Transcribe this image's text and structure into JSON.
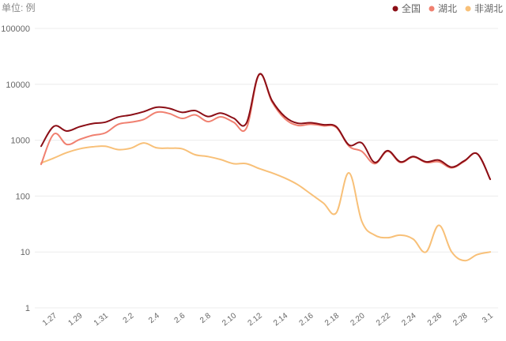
{
  "chart_data": {
    "type": "line",
    "unit_label": "单位: 例",
    "yscale": "log",
    "ylim": [
      1,
      100000
    ],
    "yticks": [
      1,
      10,
      100,
      1000,
      10000,
      100000
    ],
    "ytick_labels": [
      "1",
      "10",
      "100",
      "1000",
      "10000",
      "100000"
    ],
    "x": [
      "1.26",
      "1.27",
      "1.28",
      "1.29",
      "1.30",
      "1.31",
      "2.1",
      "2.2",
      "2.3",
      "2.4",
      "2.5",
      "2.6",
      "2.7",
      "2.8",
      "2.9",
      "2.10",
      "2.11",
      "2.12",
      "2.13",
      "2.14",
      "2.15",
      "2.16",
      "2.17",
      "2.18",
      "2.19",
      "2.20",
      "2.21",
      "2.22",
      "2.23",
      "2.24",
      "2.25",
      "2.26",
      "2.27",
      "2.28",
      "2.29",
      "3.1"
    ],
    "xtick_labels": [
      "1.27",
      "1.29",
      "1.31",
      "2.2",
      "2.4",
      "2.6",
      "2.8",
      "2.10",
      "2.12",
      "2.14",
      "2.16",
      "2.18",
      "2.20",
      "2.22",
      "2.24",
      "2.26",
      "2.28",
      "3.1"
    ],
    "legend_position": "top-right",
    "grid": true,
    "series": [
      {
        "name": "全国",
        "color": "#8b0e16",
        "values": [
          780,
          1770,
          1460,
          1740,
          1980,
          2100,
          2590,
          2830,
          3240,
          3890,
          3700,
          3150,
          3390,
          2650,
          3060,
          2480,
          2020,
          15150,
          5090,
          2640,
          2010,
          2050,
          1890,
          1750,
          820,
          890,
          400,
          650,
          410,
          510,
          410,
          440,
          330,
          430,
          570,
          200
        ]
      },
      {
        "name": "湖北",
        "color": "#f08070",
        "values": [
          370,
          1290,
          840,
          1030,
          1220,
          1350,
          1920,
          2100,
          2350,
          3160,
          2990,
          2450,
          2840,
          2150,
          2620,
          2100,
          1640,
          14840,
          4820,
          2420,
          1840,
          1930,
          1810,
          1690,
          780,
          630,
          380,
          630,
          400,
          500,
          400,
          410,
          320,
          420,
          570,
          200
        ]
      },
      {
        "name": "非湖北",
        "color": "#f8c078",
        "values": [
          390,
          480,
          600,
          700,
          760,
          780,
          680,
          720,
          890,
          730,
          720,
          700,
          550,
          510,
          450,
          380,
          380,
          310,
          260,
          210,
          160,
          110,
          75,
          50,
          260,
          35,
          20,
          18,
          20,
          17,
          10,
          30,
          10,
          7,
          9,
          10
        ]
      }
    ]
  }
}
